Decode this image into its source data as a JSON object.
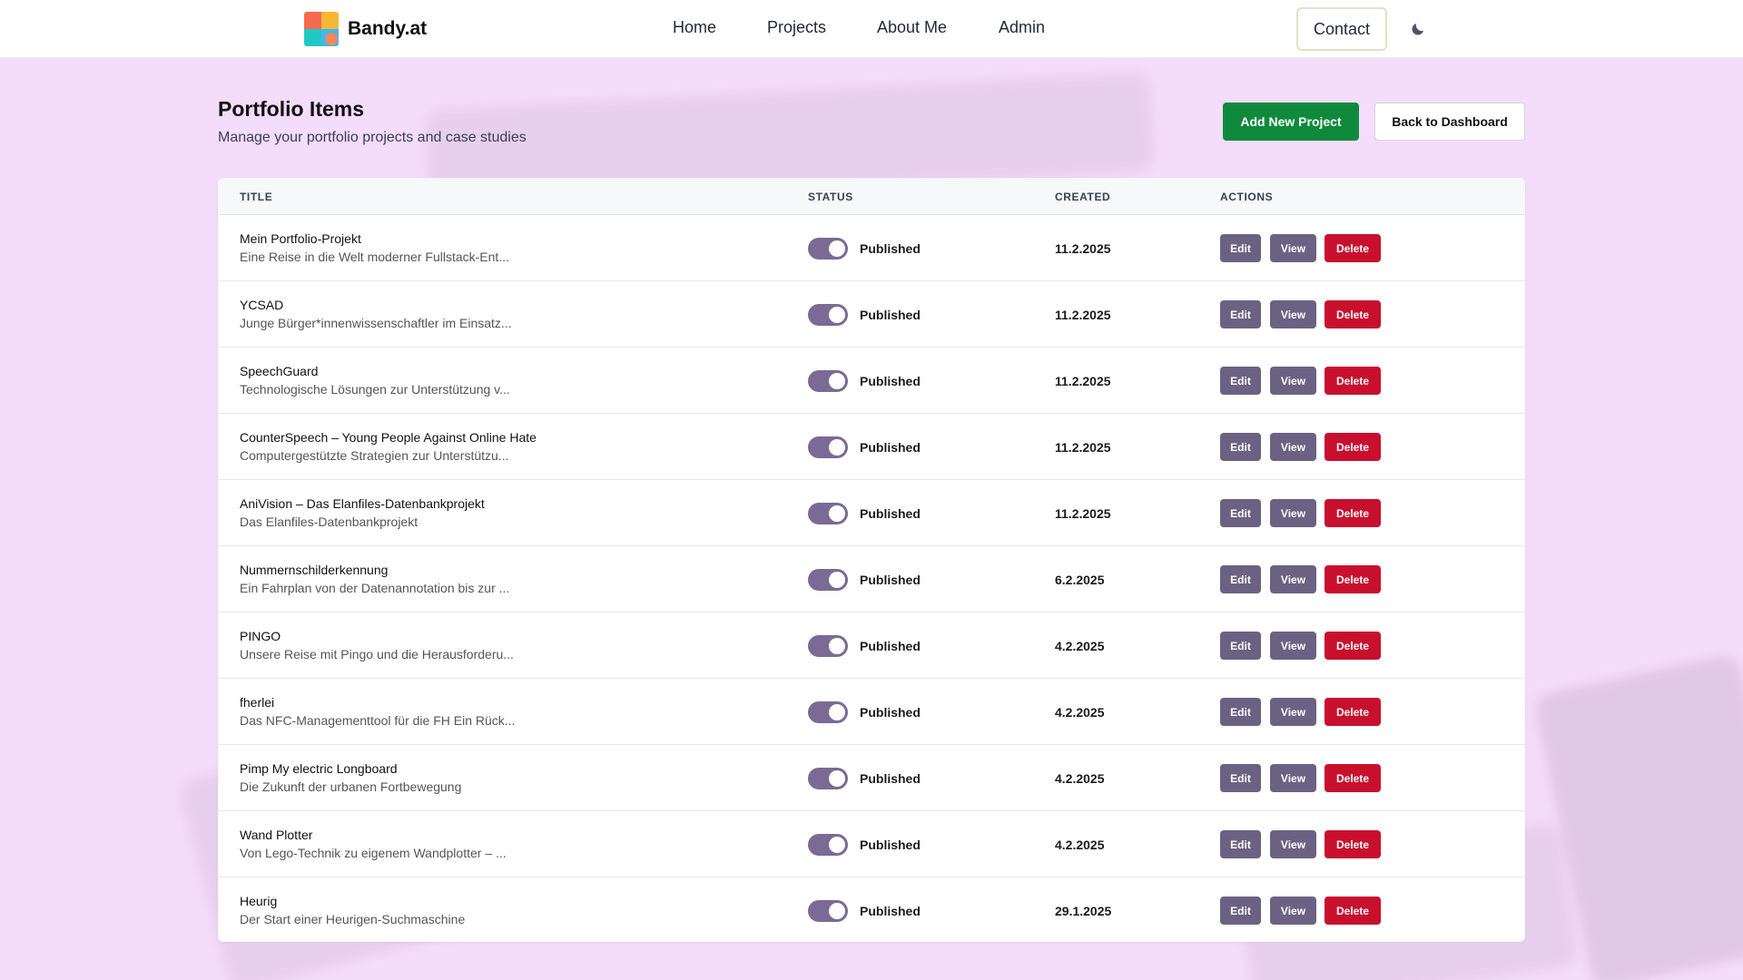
{
  "nav": {
    "brand": "Bandy.at",
    "links": [
      "Home",
      "Projects",
      "About Me",
      "Admin"
    ],
    "contact_label": "Contact"
  },
  "header": {
    "title": "Portfolio Items",
    "subtitle": "Manage your portfolio projects and case studies",
    "add_label": "Add New Project",
    "back_label": "Back to Dashboard"
  },
  "table": {
    "columns": [
      "TITLE",
      "STATUS",
      "CREATED",
      "ACTIONS"
    ],
    "actions": {
      "edit": "Edit",
      "view": "View",
      "delete": "Delete"
    },
    "rows": [
      {
        "title": "Mein Portfolio-Projekt",
        "desc": "Eine Reise in die Welt moderner Fullstack-Ent...",
        "status": "Published",
        "created": "11.2.2025"
      },
      {
        "title": "YCSAD",
        "desc": "Junge Bürger*innenwissenschaftler im Einsatz...",
        "status": "Published",
        "created": "11.2.2025"
      },
      {
        "title": "SpeechGuard",
        "desc": "Technologische Lösungen zur Unterstützung v...",
        "status": "Published",
        "created": "11.2.2025"
      },
      {
        "title": "CounterSpeech – Young People Against Online Hate",
        "desc": "Computergestützte Strategien zur Unterstützu...",
        "status": "Published",
        "created": "11.2.2025"
      },
      {
        "title": "AniVision – Das Elanfiles-Datenbankprojekt",
        "desc": "Das Elanfiles-Datenbankprojekt",
        "status": "Published",
        "created": "11.2.2025"
      },
      {
        "title": "Nummernschilderkennung",
        "desc": "Ein Fahrplan von der Datenannotation bis zur ...",
        "status": "Published",
        "created": "6.2.2025"
      },
      {
        "title": "PINGO",
        "desc": "Unsere Reise mit Pingo und die Herausforderu...",
        "status": "Published",
        "created": "4.2.2025"
      },
      {
        "title": "fherlei",
        "desc": "Das NFC-Managementtool für die FH Ein Rück...",
        "status": "Published",
        "created": "4.2.2025"
      },
      {
        "title": "Pimp My electric Longboard",
        "desc": "Die Zukunft der urbanen Fortbewegung",
        "status": "Published",
        "created": "4.2.2025"
      },
      {
        "title": "Wand Plotter",
        "desc": "Von Lego-Technik zu eigenem Wandplotter – ...",
        "status": "Published",
        "created": "4.2.2025"
      },
      {
        "title": "Heurig",
        "desc": "Der Start einer Heurigen-Suchmaschine",
        "status": "Published",
        "created": "29.1.2025"
      }
    ]
  },
  "colors": {
    "background": "#f4dcfb",
    "primary_button": "#0f8a3c",
    "action_button": "#6b6283",
    "delete_button": "#c8102e",
    "toggle_on": "#7a6a95"
  },
  "icons": [
    "logo-icon",
    "moon-icon"
  ]
}
